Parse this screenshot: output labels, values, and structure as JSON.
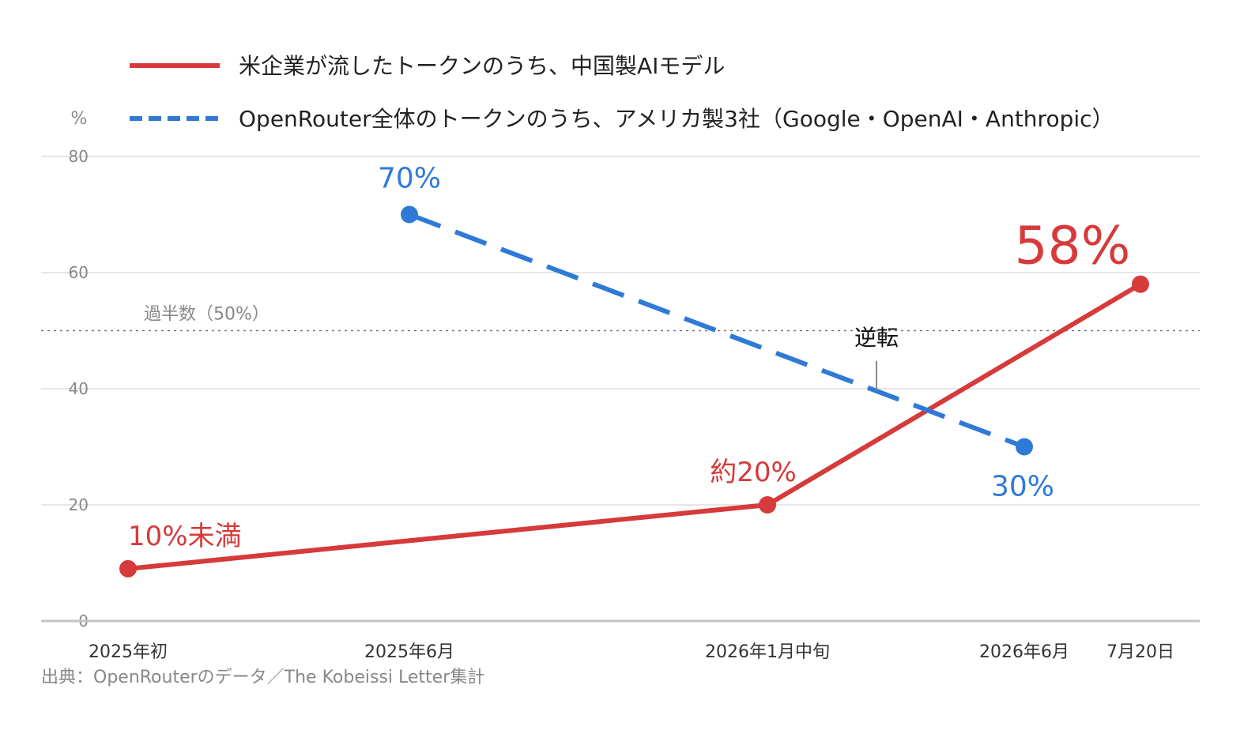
{
  "chart_data": {
    "type": "line",
    "y_unit": "%",
    "ylim": [
      0,
      80
    ],
    "y_ticks": [
      "0",
      "20",
      "40",
      "60",
      "80"
    ],
    "x_ticks": [
      {
        "label": "2025年初",
        "date": "2025-01-01"
      },
      {
        "label": "2025年6月",
        "date": "2025-06-01"
      },
      {
        "label": "2026年1月中旬",
        "date": "2026-01-15"
      },
      {
        "label": "2026年6月",
        "date": "2026-06-01"
      },
      {
        "label": "7月20日",
        "date": "2026-07-20"
      }
    ],
    "grid": true,
    "legend_position": "top-left",
    "series": [
      {
        "name": "米企業が流したトークンのうち、中国製AIモデル",
        "color": "#d63a3a",
        "style": "solid",
        "points": [
          {
            "date": "2025-01-01",
            "value": 9,
            "label": "10%未満"
          },
          {
            "date": "2026-01-15",
            "value": 20,
            "label": "約20%"
          },
          {
            "date": "2026-07-20",
            "value": 58,
            "label": "58%"
          }
        ]
      },
      {
        "name": "OpenRouter全体のトークンのうち、アメリカ製3社（Google・OpenAI・Anthropic）",
        "color": "#2f7ad6",
        "style": "dashed",
        "points": [
          {
            "date": "2025-06-01",
            "value": 70,
            "label": "70%"
          },
          {
            "date": "2026-06-01",
            "value": 30,
            "label": "30%"
          }
        ]
      }
    ],
    "reference_line": {
      "value": 50,
      "label": "過半数（50%）"
    },
    "annotation": {
      "text": "逆転"
    },
    "source": "出典：OpenRouterのデータ／The Kobeissi Letter集計"
  }
}
